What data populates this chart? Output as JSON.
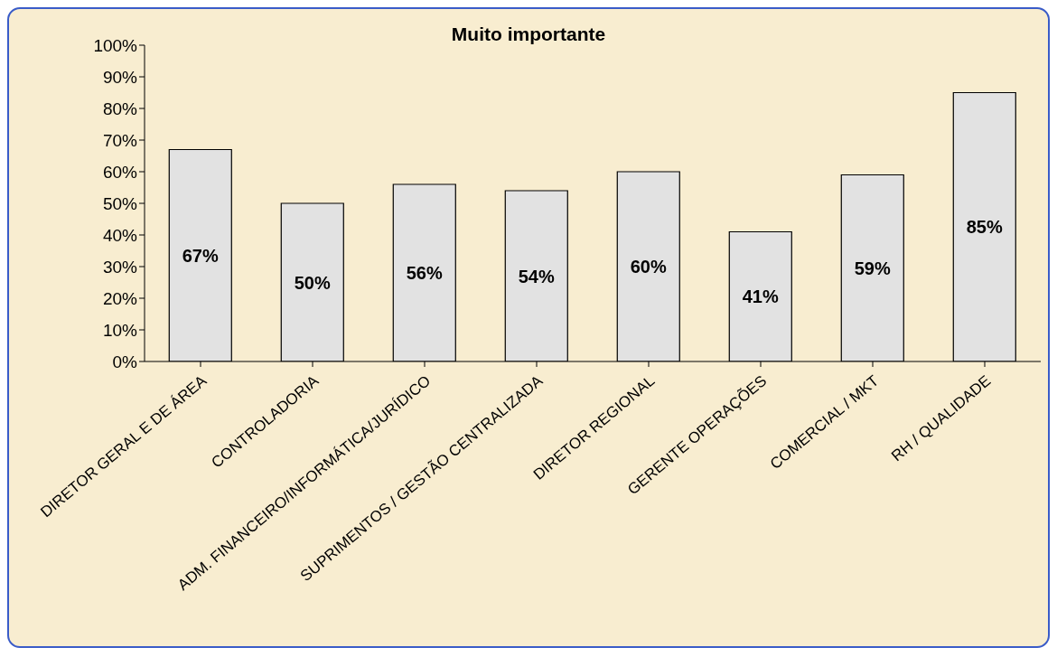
{
  "chart_data": {
    "type": "bar",
    "title": "Muito importante",
    "categories": [
      "DIRETOR GERAL E DE ÁREA",
      "CONTROLADORIA",
      "ADM. FINANCEIRO/INFORMÁTICA/JURÍDICO",
      "SUPRIMENTOS / GESTÃO CENTRALIZADA",
      "DIRETOR REGIONAL",
      "GERENTE OPERAÇÕES",
      "COMERCIAL / MKT",
      "RH / QUALIDADE"
    ],
    "values": [
      67,
      50,
      56,
      54,
      60,
      41,
      59,
      85
    ],
    "value_labels": [
      "67%",
      "50%",
      "56%",
      "54%",
      "60%",
      "41%",
      "59%",
      "85%"
    ],
    "color": "#e2e2e2",
    "ylim": [
      0,
      100
    ],
    "yticks": [
      {
        "value": 0,
        "label": "0%"
      },
      {
        "value": 10,
        "label": "10%"
      },
      {
        "value": 20,
        "label": "20%"
      },
      {
        "value": 30,
        "label": "30%"
      },
      {
        "value": 40,
        "label": "40%"
      },
      {
        "value": 50,
        "label": "50%"
      },
      {
        "value": 60,
        "label": "60%"
      },
      {
        "value": 70,
        "label": "70%"
      },
      {
        "value": 80,
        "label": "80%"
      },
      {
        "value": 90,
        "label": "90%"
      },
      {
        "value": 100,
        "label": "100%"
      }
    ],
    "grid": false,
    "legend": false
  }
}
